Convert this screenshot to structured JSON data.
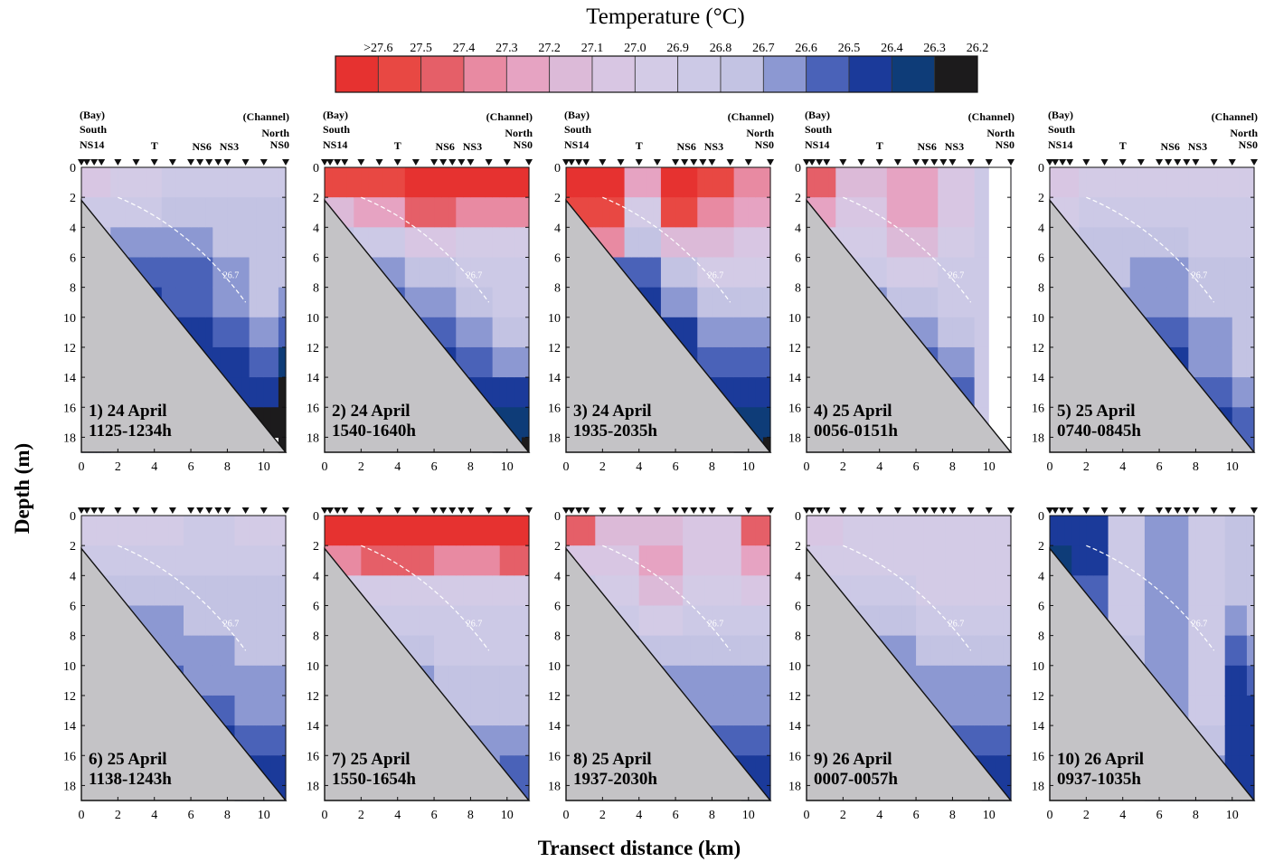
{
  "figure": {
    "legend_title": "Temperature (°C)",
    "legend_labels": [
      ">27.6",
      "27.5",
      "27.4",
      "27.3",
      "27.2",
      "27.1",
      "27.0",
      "26.9",
      "26.8",
      "26.7",
      "26.6",
      "26.5",
      "26.4",
      "26.3",
      "26.2"
    ],
    "legend_colors": [
      "#e63230",
      "#e84843",
      "#e55f68",
      "#e88aa2",
      "#e6a3c2",
      "#dcbad8",
      "#d8c6e3",
      "#d3cbe6",
      "#ccc9e6",
      "#c3c3e3",
      "#8c98d2",
      "#4a62b8",
      "#1b3a9a",
      "#0e3c78",
      "#1c1b1c"
    ],
    "y_axis_label": "Depth (m)",
    "x_axis_label": "Transect distance (km)"
  },
  "stations": {
    "south": [
      "(Bay)",
      "South",
      "NS14"
    ],
    "middle": [
      "T",
      "NS6",
      "NS3"
    ],
    "north": [
      "(Channel)",
      "North",
      "NS0"
    ]
  },
  "chart_data": {
    "type": "contour-section",
    "variable": "Temperature (°C)",
    "ylabel": "Depth (m)",
    "xlabel": "Transect distance (km)",
    "x_ticks": [
      0,
      2,
      4,
      6,
      8,
      10
    ],
    "y_ticks": [
      0,
      2,
      4,
      6,
      8,
      10,
      12,
      14,
      16,
      18
    ],
    "xlim": [
      0,
      11.2
    ],
    "ylim": [
      19,
      0
    ],
    "contour_label": "26.7",
    "panels": [
      {
        "id": 1,
        "title": "1)  24 April",
        "time": "1125-1234h"
      },
      {
        "id": 2,
        "title": "2)  24 April",
        "time": "1540-1640h"
      },
      {
        "id": 3,
        "title": "3)  24 April",
        "time": "1935-2035h"
      },
      {
        "id": 4,
        "title": "4)  25 April",
        "time": "0056-0151h"
      },
      {
        "id": 5,
        "title": "5) 25 April",
        "time": "0740-0845h"
      },
      {
        "id": 6,
        "title": "6)  25 April",
        "time": "1138-1243h"
      },
      {
        "id": 7,
        "title": "7)  25 April",
        "time": "1550-1654h"
      },
      {
        "id": 8,
        "title": "8)  25 April",
        "time": "1937-2030h"
      },
      {
        "id": 9,
        "title": "9)  26 April",
        "time": "0007-0057h"
      },
      {
        "id": 10,
        "title": "10)  26 April",
        "time": "0937-1035h"
      }
    ]
  }
}
